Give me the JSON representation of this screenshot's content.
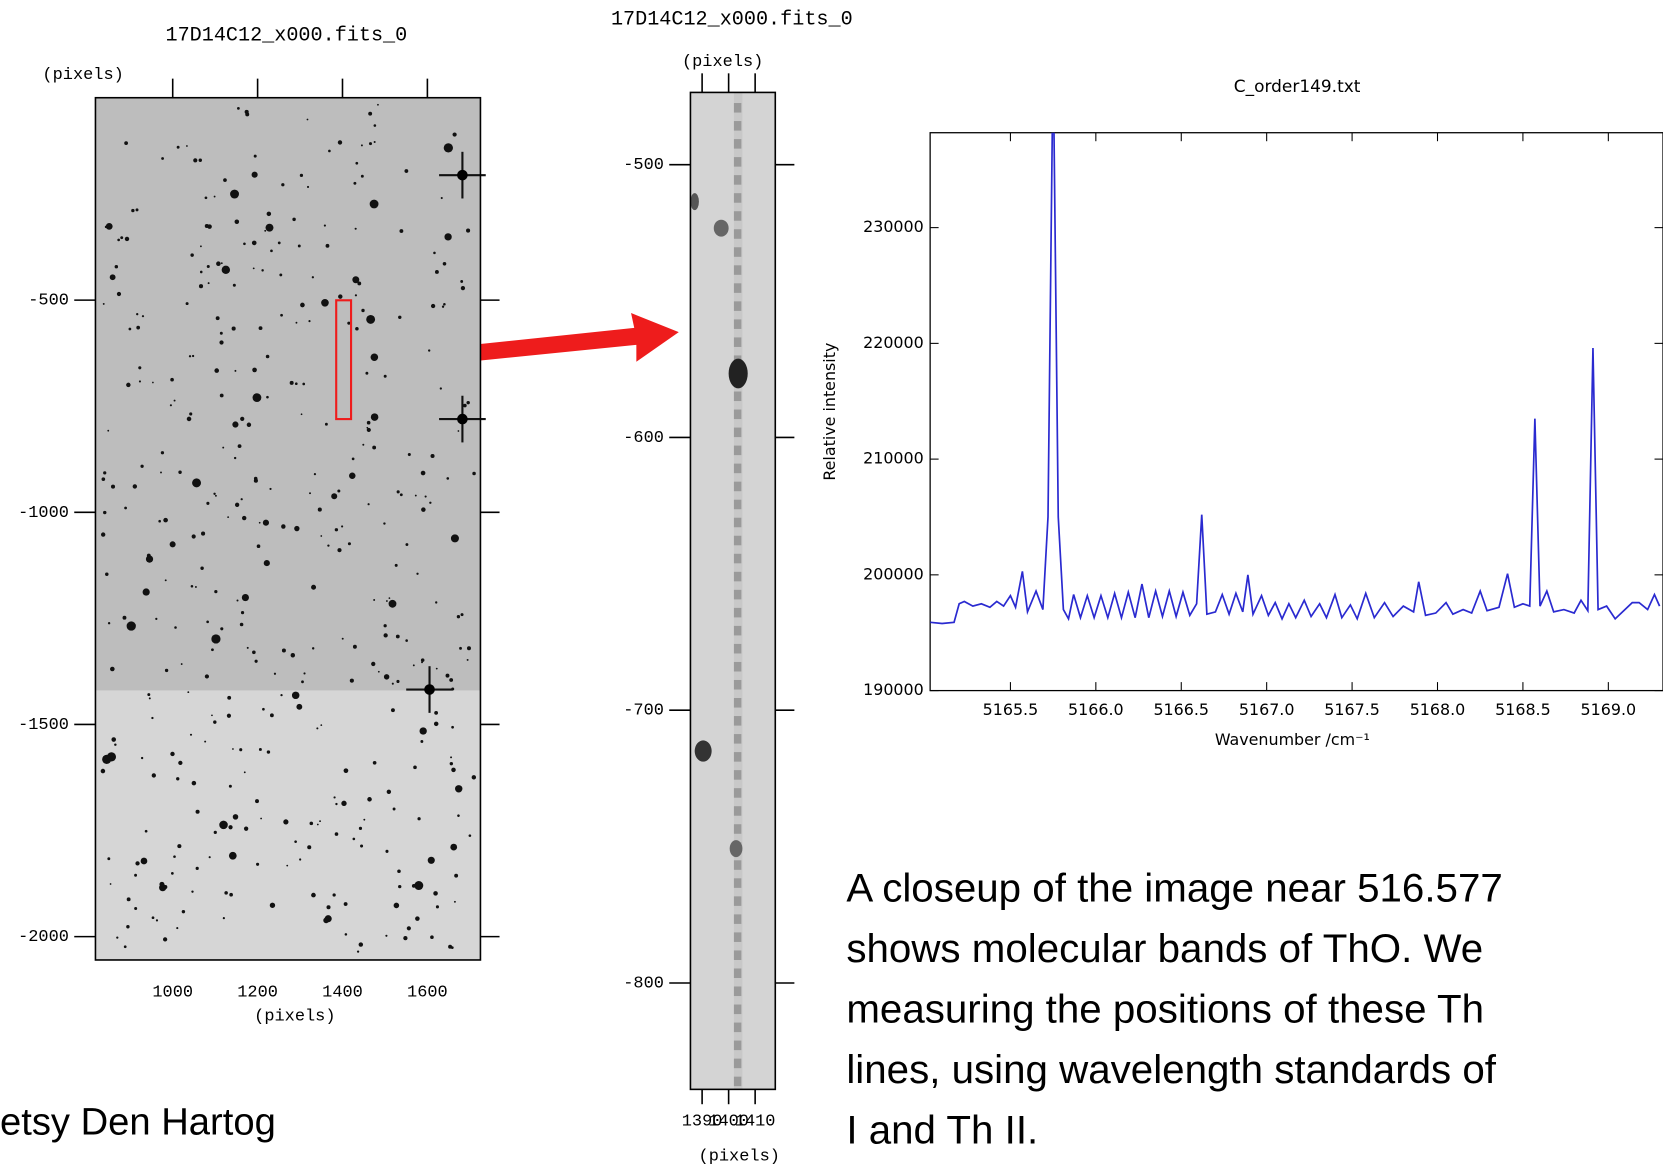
{
  "chart_data": [
    {
      "type": "image",
      "title": "17D14C12_x000.fits_0",
      "ylabel": "(pixels)",
      "xlabel": "(pixels)",
      "xlim": [
        818,
        1725
      ],
      "ylim": [
        -2055,
        -23
      ],
      "xticks": [
        1000,
        1200,
        1400,
        1600
      ],
      "yticks": [
        -500,
        -1000,
        -1500,
        -2000
      ]
    },
    {
      "type": "image",
      "title": "17D14C12_x000.fits_0",
      "ylabel": "(pixels)",
      "xlabel": "(pixels)",
      "xlim": [
        1385.6,
        1417.6
      ],
      "ylim": [
        -839,
        -473.5
      ],
      "xticks": [
        1390,
        1400,
        1410
      ],
      "yticks": [
        -500,
        -600,
        -700,
        -800
      ]
    },
    {
      "type": "line",
      "title": "C_order149.txt",
      "xlabel": "Wavenumber /cm⁻¹",
      "ylabel": "Relative intensity",
      "color": "#2a2ad0",
      "xlim": [
        5165.03,
        5169.32
      ],
      "ylim": [
        190000,
        238200
      ],
      "xticks": [
        5165.5,
        {
          "value": 5166,
          "label": "5166.0"
        },
        5166.5,
        {
          "value": 5167,
          "label": "5167.0"
        },
        5167.5,
        {
          "value": 5168,
          "label": "5168.0"
        },
        5168.5,
        {
          "value": 5169,
          "label": "5169.0"
        }
      ],
      "yticks": [
        190000,
        200000,
        210000,
        220000,
        230000
      ],
      "x": [
        5165.03,
        5165.1,
        5165.17,
        5165.2,
        5165.23,
        5165.28,
        5165.33,
        5165.38,
        5165.42,
        5165.46,
        5165.5,
        5165.53,
        5165.57,
        5165.6,
        5165.65,
        5165.69,
        5165.72,
        5165.75,
        5165.78,
        5165.81,
        5165.84,
        5165.87,
        5165.91,
        5165.95,
        5165.99,
        5166.03,
        5166.07,
        5166.11,
        5166.15,
        5166.19,
        5166.23,
        5166.27,
        5166.31,
        5166.35,
        5166.39,
        5166.43,
        5166.47,
        5166.51,
        5166.55,
        5166.59,
        5166.62,
        5166.65,
        5166.7,
        5166.74,
        5166.78,
        5166.82,
        5166.86,
        5166.89,
        5166.92,
        5166.97,
        5167.01,
        5167.05,
        5167.09,
        5167.13,
        5167.17,
        5167.22,
        5167.26,
        5167.31,
        5167.35,
        5167.4,
        5167.44,
        5167.49,
        5167.53,
        5167.58,
        5167.63,
        5167.69,
        5167.74,
        5167.8,
        5167.86,
        5167.89,
        5167.93,
        5167.99,
        5168.05,
        5168.09,
        5168.15,
        5168.2,
        5168.25,
        5168.29,
        5168.36,
        5168.41,
        5168.45,
        5168.5,
        5168.54,
        5168.57,
        5168.6,
        5168.64,
        5168.68,
        5168.74,
        5168.8,
        5168.84,
        5168.88,
        5168.91,
        5168.94,
        5168.99,
        5169.04,
        5169.09,
        5169.14,
        5169.18,
        5169.23,
        5169.27,
        5169.3
      ],
      "values": [
        195900,
        195800,
        195900,
        197500,
        197700,
        197300,
        197500,
        197200,
        197700,
        197300,
        198200,
        197200,
        200300,
        196800,
        198600,
        197000,
        205000,
        245000,
        205000,
        197000,
        196200,
        198300,
        196300,
        198200,
        196300,
        198200,
        196300,
        198400,
        196300,
        198500,
        196300,
        199200,
        196300,
        198600,
        196400,
        198600,
        196400,
        198500,
        196500,
        197500,
        205200,
        196600,
        196800,
        198300,
        196600,
        198400,
        196800,
        200000,
        196600,
        198200,
        196500,
        197600,
        196200,
        197500,
        196300,
        197800,
        196400,
        197500,
        196300,
        198300,
        196300,
        197400,
        196200,
        198400,
        196300,
        197600,
        196400,
        197300,
        196800,
        199400,
        196500,
        196700,
        197600,
        196600,
        197000,
        196700,
        198600,
        196900,
        197200,
        200100,
        197200,
        197500,
        197300,
        213500,
        197300,
        198600,
        196800,
        197000,
        196700,
        197800,
        196900,
        219600,
        197000,
        197300,
        196200,
        196900,
        197600,
        197600,
        197000,
        198300,
        197300
      ]
    }
  ],
  "caption": [
    "A closeup of the image near 516.577",
    "shows molecular bands of ThO. We",
    "measuring the positions of these Th",
    "lines, using wavelength standards of",
    "I and Th II."
  ],
  "credit": "etsy Den Hartog"
}
